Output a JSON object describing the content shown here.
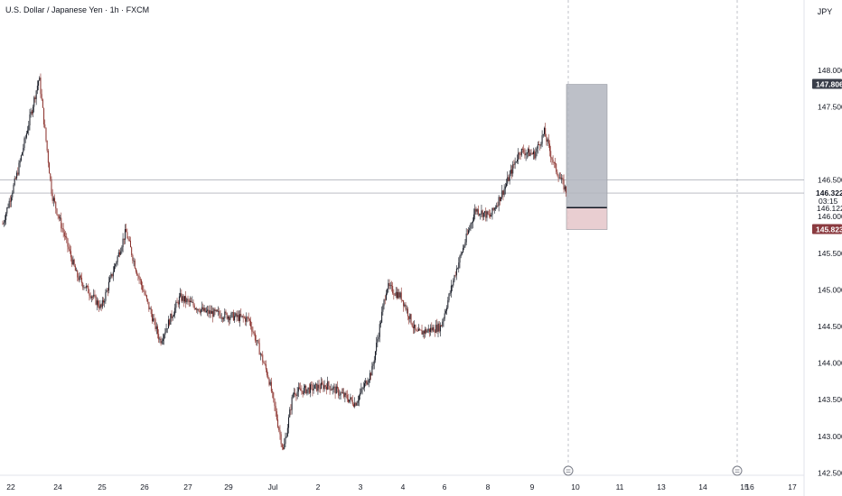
{
  "header": {
    "title": "U.S. Dollar / Japanese Yen · 1h · FXCM",
    "currency": "JPY"
  },
  "price_tags": {
    "target": "147.806",
    "current": "146.322",
    "countdown": "03:15",
    "entry": "146.122",
    "stop": "145.823"
  },
  "colors": {
    "candle_up": "#131722",
    "candle_down": "#8a2f2a",
    "target_zone": "#b2b5be",
    "stop_zone": "#e7c9cc",
    "entry_line": "#131722",
    "target_tag": "#3a3e4a",
    "current_tag": "#ffffff",
    "stop_tag": "#8a3a3f"
  },
  "chart_data": {
    "type": "candlestick",
    "title": "U.S. Dollar / Japanese Yen · 1h · FXCM",
    "ylim": [
      142.3,
      148.55
    ],
    "y_ticks": [
      "148.000",
      "147.500",
      "146.500",
      "146.000",
      "145.500",
      "145.000",
      "144.500",
      "144.000",
      "143.500",
      "143.000",
      "142.500"
    ],
    "x_ticks": [
      "22",
      "24",
      "25",
      "26",
      "27",
      "29",
      "Jul",
      "2",
      "3",
      "4",
      "6",
      "8",
      "9",
      "10",
      "11",
      "13",
      "14",
      "15",
      "16",
      "17"
    ],
    "horizontal_lines": [
      146.5,
      146.322
    ],
    "vertical_dashed_lines_at": [
      "10",
      "15"
    ],
    "risk_reward": {
      "target": 147.806,
      "entry": 146.122,
      "stop": 145.823
    },
    "close_path_anchors": [
      {
        "x": 0,
        "close": 145.9
      },
      {
        "x": 1.5,
        "close": 146.6
      },
      {
        "x": 3.7,
        "close": 147.9
      },
      {
        "x": 5,
        "close": 146.3
      },
      {
        "x": 7.5,
        "close": 145.2
      },
      {
        "x": 10,
        "close": 144.75
      },
      {
        "x": 12.5,
        "close": 145.8
      },
      {
        "x": 13.5,
        "close": 145.3
      },
      {
        "x": 16,
        "close": 144.3
      },
      {
        "x": 18,
        "close": 144.9
      },
      {
        "x": 20.5,
        "close": 144.7
      },
      {
        "x": 25,
        "close": 144.6
      },
      {
        "x": 27,
        "close": 143.8
      },
      {
        "x": 28.5,
        "close": 142.8
      },
      {
        "x": 29.5,
        "close": 143.6
      },
      {
        "x": 33,
        "close": 143.7
      },
      {
        "x": 35.8,
        "close": 143.45
      },
      {
        "x": 37.5,
        "close": 143.9
      },
      {
        "x": 39,
        "close": 145.05
      },
      {
        "x": 40.5,
        "close": 144.9
      },
      {
        "x": 42,
        "close": 144.4
      },
      {
        "x": 44.5,
        "close": 144.5
      },
      {
        "x": 46,
        "close": 145.25
      },
      {
        "x": 48,
        "close": 146.1
      },
      {
        "x": 49.5,
        "close": 146.0
      },
      {
        "x": 51,
        "close": 146.4
      },
      {
        "x": 52.5,
        "close": 146.9
      },
      {
        "x": 54,
        "close": 146.85
      },
      {
        "x": 55,
        "close": 147.15
      },
      {
        "x": 56,
        "close": 146.7
      },
      {
        "x": 57.3,
        "close": 146.32
      }
    ]
  }
}
